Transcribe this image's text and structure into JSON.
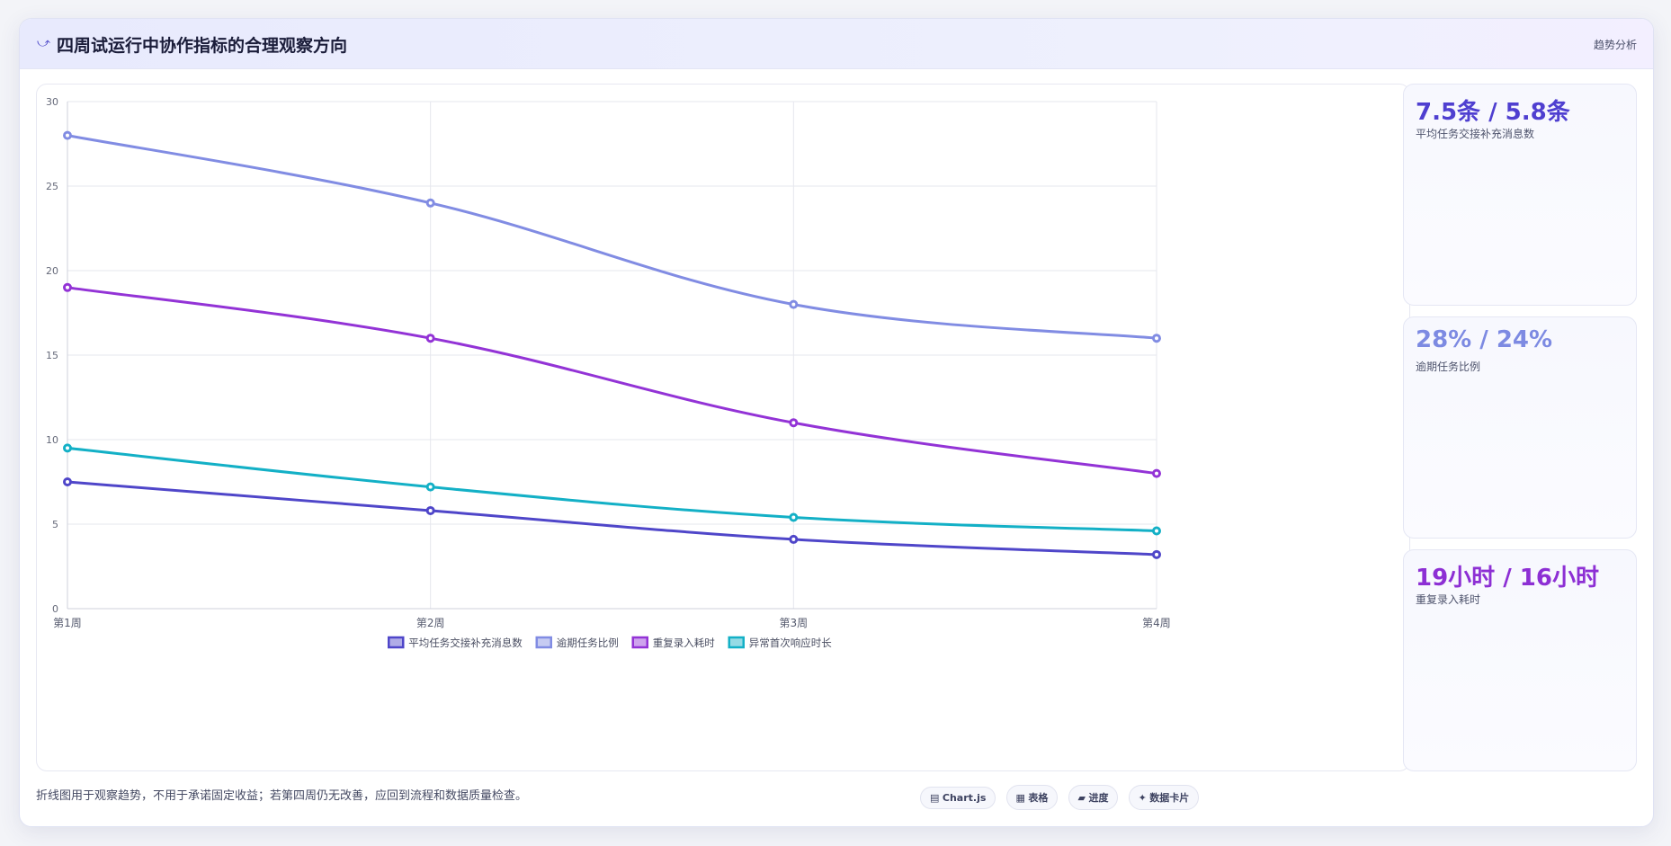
{
  "header": {
    "icon": "trend-arrow-icon",
    "icon_glyph": "⤻",
    "title": "四周试运行中协作指标的合理观察方向",
    "tag": "趋势分析"
  },
  "chart_data": {
    "type": "line",
    "categories": [
      "第1周",
      "第2周",
      "第3周",
      "第4周"
    ],
    "series": [
      {
        "name": "平均任务交接补充消息数",
        "values": [
          7.5,
          5.8,
          4.1,
          3.2
        ],
        "color": "#4f46c9"
      },
      {
        "name": "逾期任务比例",
        "values": [
          28,
          24,
          18,
          16
        ],
        "color": "#818ce3"
      },
      {
        "name": "重复录入耗时",
        "values": [
          19,
          16,
          11,
          8
        ],
        "color": "#9333d6"
      },
      {
        "name": "异常首次响应时长",
        "values": [
          9.5,
          7.2,
          5.4,
          4.6
        ],
        "color": "#13b0c6"
      }
    ],
    "ylim": [
      0,
      30
    ],
    "yticks": [
      0,
      5,
      10,
      15,
      20,
      25,
      30
    ],
    "grid": true,
    "legend": "bottom",
    "xlabel": "",
    "ylabel": ""
  },
  "kpis": [
    {
      "value": "7.5条 / 5.8条",
      "label": "平均任务交接补充消息数",
      "color": "#4f3fd0"
    },
    {
      "value": "28% / 24%",
      "label": "逾期任务比例",
      "color": "#7d8ae2"
    },
    {
      "value": "19小时 / 16小时",
      "label": "重复录入耗时",
      "color": "#8d2fd4"
    }
  ],
  "footer": {
    "note": "折线图用于观察趋势，不用于承诺固定收益；若第四周仍无改善，应回到流程和数据质量检查。",
    "chips": [
      {
        "icon": "▤",
        "label": "Chart.js"
      },
      {
        "icon": "▦",
        "label": "表格"
      },
      {
        "icon": "▰",
        "label": "进度"
      },
      {
        "icon": "✦",
        "label": "数据卡片"
      }
    ]
  }
}
